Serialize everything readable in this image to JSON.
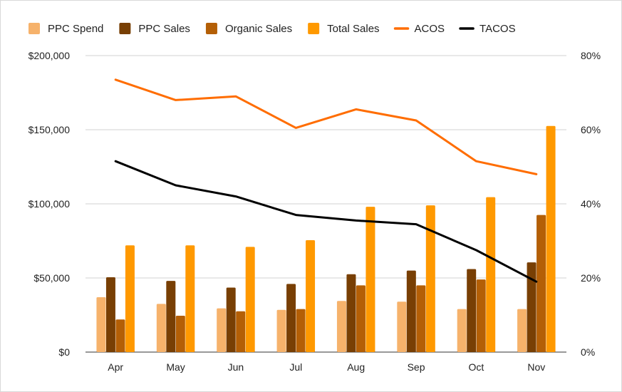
{
  "chart_data": {
    "type": "bar",
    "categories": [
      "Apr",
      "May",
      "Jun",
      "Jul",
      "Aug",
      "Sep",
      "Oct",
      "Nov"
    ],
    "series": [
      {
        "name": "PPC Spend",
        "kind": "bar",
        "axis": "left",
        "color": "#f6b26b",
        "values": [
          37000,
          32500,
          29500,
          28500,
          34500,
          34000,
          29000,
          29000
        ]
      },
      {
        "name": "PPC Sales",
        "kind": "bar",
        "axis": "left",
        "color": "#783f04",
        "values": [
          50500,
          48000,
          43500,
          46000,
          52500,
          55000,
          56000,
          60500
        ]
      },
      {
        "name": "Organic Sales",
        "kind": "bar",
        "axis": "left",
        "color": "#b45f06",
        "values": [
          22000,
          24500,
          27500,
          29000,
          45000,
          45000,
          49000,
          92500
        ]
      },
      {
        "name": "Total Sales",
        "kind": "bar",
        "axis": "left",
        "color": "#ff9900",
        "values": [
          72000,
          72000,
          71000,
          75500,
          98000,
          99000,
          104500,
          152500
        ]
      },
      {
        "name": "ACOS",
        "kind": "line",
        "axis": "right",
        "color": "#ff6d01",
        "values": [
          73.5,
          68,
          69,
          60.5,
          65.5,
          62.5,
          51.5,
          48
        ]
      },
      {
        "name": "TACOS",
        "kind": "line",
        "axis": "right",
        "color": "#000000",
        "values": [
          51.5,
          45,
          42,
          37,
          35.5,
          34.5,
          27.5,
          19
        ]
      }
    ],
    "left_axis": {
      "min": 0,
      "max": 200000,
      "ticks": [
        0,
        50000,
        100000,
        150000,
        200000
      ],
      "tick_labels": [
        "$0",
        "$50,000",
        "$100,000",
        "$150,000",
        "$200,000"
      ]
    },
    "right_axis": {
      "min": 0,
      "max": 80,
      "ticks": [
        0,
        20,
        40,
        60,
        80
      ],
      "tick_labels": [
        "0%",
        "20%",
        "40%",
        "60%",
        "80%"
      ]
    },
    "grid": true,
    "legend_position": "top",
    "title": "",
    "xlabel": "",
    "ylabel": ""
  }
}
